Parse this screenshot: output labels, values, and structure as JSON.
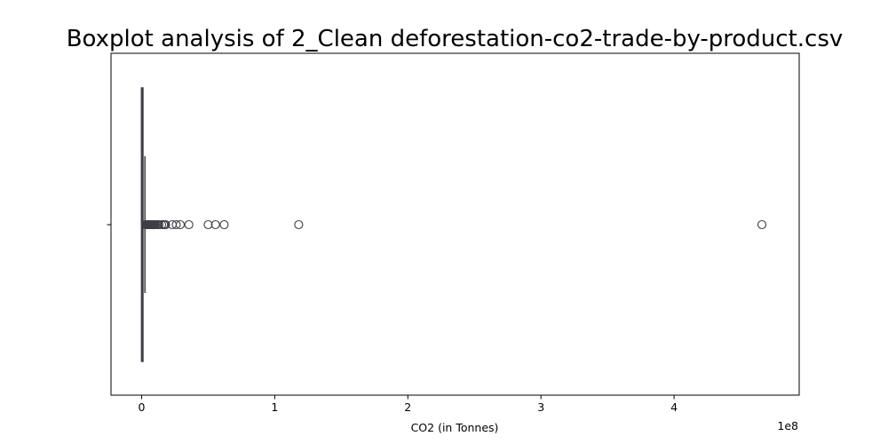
{
  "chart_data": {
    "type": "boxplot",
    "orientation": "horizontal",
    "title": "Boxplot analysis of 2_Clean deforestation-co2-trade-by-product.csv",
    "xlabel": "CO2 (in Tonnes)",
    "ylabel": "",
    "x_scale_label": "1e8",
    "xlim": [
      -0.23,
      4.94
    ],
    "xticks": [
      0,
      1,
      2,
      3,
      4
    ],
    "xtick_labels": [
      "0",
      "1",
      "2",
      "3",
      "4"
    ],
    "y_category_ticks": [
      ""
    ],
    "grid": false,
    "legend": "none",
    "box": {
      "q1": 0.0,
      "median": 0.0005,
      "q3": 0.01,
      "whisker_low": 0.0,
      "whisker_high": 0.025
    },
    "outliers": [
      0.03,
      0.035,
      0.04,
      0.045,
      0.05,
      0.055,
      0.06,
      0.065,
      0.07,
      0.075,
      0.08,
      0.085,
      0.09,
      0.095,
      0.1,
      0.11,
      0.12,
      0.13,
      0.15,
      0.165,
      0.175,
      0.18,
      0.23,
      0.26,
      0.29,
      0.355,
      0.5,
      0.555,
      0.62,
      1.18,
      4.66
    ],
    "colors": {
      "box_edge": "#3f3f46",
      "box_fill": "#5b6c97",
      "outlier_edge": "#3f3f46",
      "axes": "#000000"
    }
  }
}
